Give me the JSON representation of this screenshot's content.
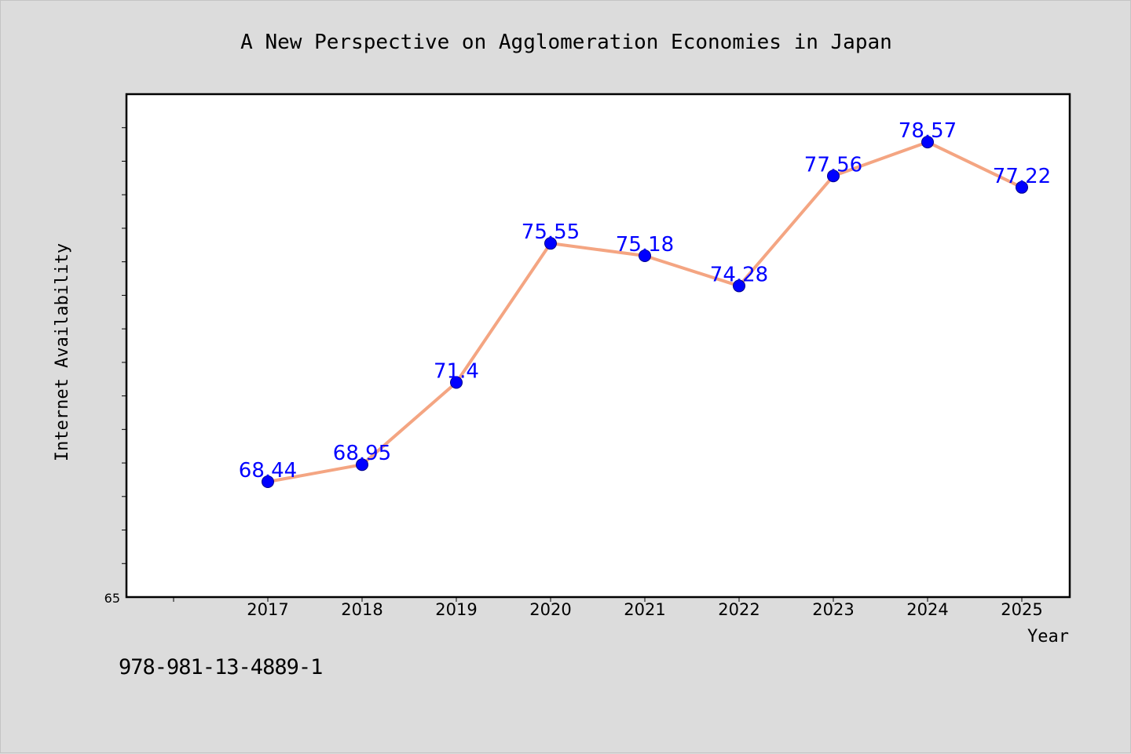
{
  "colors": {
    "background": "#dcdcdc",
    "plot_background": "#ffffff",
    "line": "#f4a582",
    "marker": "#0000ff",
    "data_label": "#0000ff"
  },
  "isbn": "978-981-13-4889-1",
  "chart_data": {
    "type": "line",
    "title": "A New Perspective on Agglomeration Economies in Japan",
    "xlabel": "Year",
    "ylabel": "Internet Availability",
    "categories": [
      "2017",
      "2018",
      "2019",
      "2020",
      "2021",
      "2022",
      "2023",
      "2024",
      "2025"
    ],
    "series": [
      {
        "values": [
          68.44,
          68.95,
          71.4,
          75.55,
          75.18,
          74.28,
          77.56,
          78.57,
          77.22
        ],
        "labels": [
          "68.44",
          "68.95",
          "71.4",
          "75.55",
          "75.18",
          "74.28",
          "77.56",
          "78.57",
          "77.22"
        ]
      }
    ],
    "ylim": [
      65,
      80
    ],
    "y_tick_labels": [
      "65"
    ],
    "y_minor_tick_step": 1,
    "grid": false,
    "legend": "none"
  }
}
